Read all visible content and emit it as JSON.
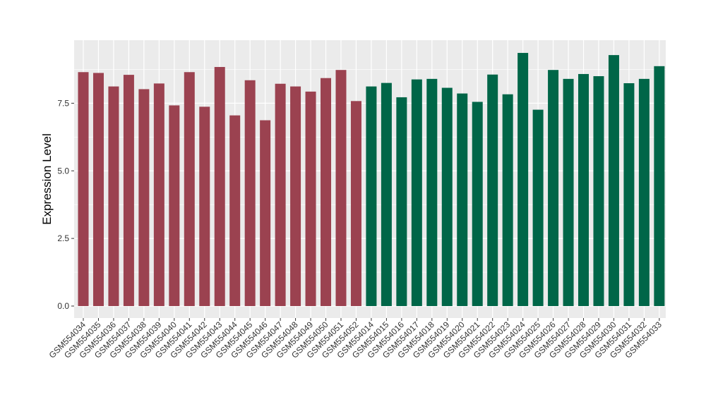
{
  "chart_data": {
    "type": "bar",
    "title": "",
    "xlabel": "",
    "ylabel": "Expression Level",
    "ylim": [
      0,
      9.6
    ],
    "yticks": [
      0.0,
      2.5,
      5.0,
      7.5
    ],
    "ytick_labels": [
      "0.0",
      "2.5",
      "5.0",
      "7.5"
    ],
    "grid": true,
    "legend": "none",
    "panel_color": "#ebebeb",
    "grid_color": "#ffffff",
    "categories": [
      "GSM554034",
      "GSM554035",
      "GSM554036",
      "GSM554037",
      "GSM554038",
      "GSM554039",
      "GSM554040",
      "GSM554041",
      "GSM554042",
      "GSM554043",
      "GSM554044",
      "GSM554045",
      "GSM554046",
      "GSM554047",
      "GSM554048",
      "GSM554049",
      "GSM554050",
      "GSM554051",
      "GSM554052",
      "GSM554014",
      "GSM554015",
      "GSM554016",
      "GSM554017",
      "GSM554018",
      "GSM554019",
      "GSM554020",
      "GSM554021",
      "GSM554022",
      "GSM554023",
      "GSM554024",
      "GSM554025",
      "GSM554026",
      "GSM554027",
      "GSM554028",
      "GSM554029",
      "GSM554030",
      "GSM554031",
      "GSM554032",
      "GSM554033"
    ],
    "values": [
      8.65,
      8.62,
      8.12,
      8.55,
      8.02,
      8.23,
      7.42,
      8.65,
      7.37,
      8.84,
      7.05,
      8.35,
      6.87,
      8.22,
      8.12,
      7.93,
      8.43,
      8.73,
      7.58,
      8.12,
      8.25,
      7.72,
      8.38,
      8.4,
      8.07,
      7.86,
      7.55,
      8.56,
      7.83,
      9.36,
      7.26,
      8.73,
      8.4,
      8.58,
      8.5,
      9.28,
      8.24,
      8.4,
      8.87
    ],
    "bar_colors": [
      "#9b4250",
      "#9b4250",
      "#9b4250",
      "#9b4250",
      "#9b4250",
      "#9b4250",
      "#9b4250",
      "#9b4250",
      "#9b4250",
      "#9b4250",
      "#9b4250",
      "#9b4250",
      "#9b4250",
      "#9b4250",
      "#9b4250",
      "#9b4250",
      "#9b4250",
      "#9b4250",
      "#9b4250",
      "#006648",
      "#006648",
      "#006648",
      "#006648",
      "#006648",
      "#006648",
      "#006648",
      "#006648",
      "#006648",
      "#006648",
      "#006648",
      "#006648",
      "#006648",
      "#006648",
      "#006648",
      "#006648",
      "#006648",
      "#006648",
      "#006648",
      "#006648"
    ]
  }
}
